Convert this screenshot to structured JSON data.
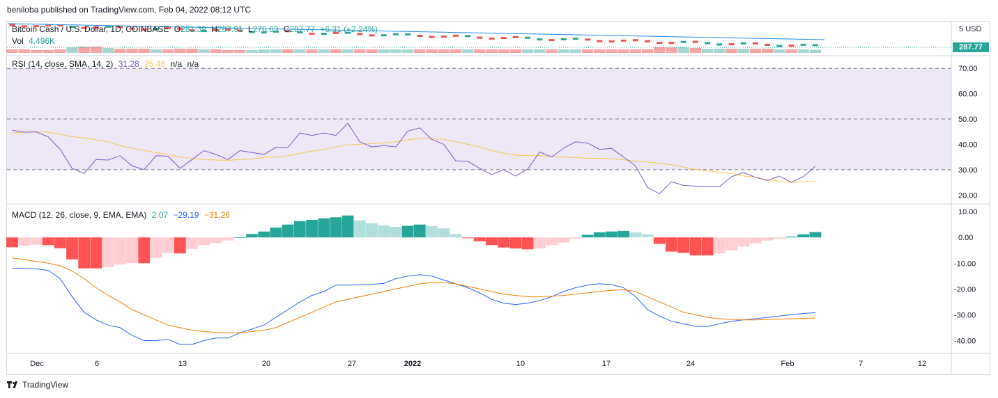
{
  "header": {
    "publisher_line": "beniloba published on TradingView.com, Feb 04, 2022 08:12 UTC"
  },
  "footer": {
    "brand": "TradingView"
  },
  "colors": {
    "up": "#26a69a",
    "down": "#ef5350",
    "rsi": "#7e57c2",
    "rsi_ma": "#f7c948",
    "macd": "#2962ff",
    "signal": "#f57c00",
    "hist_up_strong": "#26a69a",
    "hist_up_weak": "#b2dfdb",
    "hist_down_strong": "#ff5252",
    "hist_down_weak": "#ffcdd2",
    "rsi_band": "#ede7f6"
  },
  "price_pane": {
    "symbol": "Bitcoin Cash / U.S. Dollar, 1D, COINBASE",
    "o_label": "O",
    "o": "281.39",
    "h_label": "H",
    "h": "287.91",
    "l_label": "L",
    "l": "276.63",
    "c_label": "C",
    "c": "287.77",
    "change": "+6.31 (+2.24%)",
    "vol_label": "Vol",
    "vol": "4.496K",
    "last_price": "287.77",
    "axis_label": "5",
    "currency": "USD"
  },
  "rsi_pane": {
    "title": "RSI (14, close, SMA, 14, 2)",
    "value": "31.28",
    "ma_value": "25.46",
    "na1": "n/a",
    "na2": "n/a"
  },
  "macd_pane": {
    "title": "MACD (12, 26, close, 9, EMA, EMA)",
    "hist_value": "2.07",
    "macd_value": "−29.19",
    "signal_value": "−31.26"
  },
  "x_axis": {
    "ticks": [
      "Dec",
      "6",
      "13",
      "20",
      "27",
      "2022",
      "10",
      "17",
      "24",
      "Feb",
      "7",
      "12"
    ]
  },
  "chart_data": [
    {
      "type": "line",
      "title": "RSI (14, close, SMA, 14, 2)",
      "yticks": [
        "70.00",
        "60.00",
        "50.00",
        "40.00",
        "30.00",
        "20.00"
      ],
      "ylim": [
        16.5,
        75
      ],
      "band": [
        30,
        70
      ],
      "x_start": "2021-12-01",
      "series": [
        {
          "name": "RSI",
          "values": [
            45.5,
            44.8,
            44.9,
            43,
            38,
            30.5,
            28.5,
            34,
            33.8,
            35.5,
            31.5,
            30,
            35.5,
            35.3,
            30.5,
            34,
            37.5,
            36,
            34,
            37.5,
            36.8,
            36,
            38.8,
            38.8,
            44.5,
            43.5,
            44.5,
            43.5,
            48.3,
            41,
            39,
            39.5,
            39,
            45.2,
            46.5,
            42,
            40,
            33.5,
            33.3,
            30.5,
            28,
            30,
            27.5,
            30.2,
            37,
            35,
            38.5,
            41,
            40.5,
            38,
            38.4,
            35,
            31.5,
            23,
            20.5,
            25.2,
            23.8,
            23.5,
            23.2,
            23.3,
            27.2,
            28.8,
            27,
            25.7,
            27.5,
            25,
            27.3,
            31.3
          ]
        },
        {
          "name": "RSI-based MA",
          "values": [
            44.5,
            44.8,
            45,
            44.8,
            44,
            43,
            42.5,
            41.8,
            41,
            39.5,
            38.5,
            37.5,
            36.8,
            36,
            35,
            34.5,
            34,
            33.8,
            33.7,
            34,
            34.3,
            34.8,
            35,
            35.5,
            36.5,
            37.3,
            38,
            39,
            39.8,
            40,
            40.3,
            40.5,
            41,
            41.8,
            42.3,
            42.1,
            42,
            41,
            40,
            39,
            37.5,
            36.5,
            35.8,
            35.5,
            35.5,
            35.3,
            35,
            34.8,
            34.5,
            34.5,
            34.3,
            33.9,
            33.4,
            33,
            32.5,
            32,
            31,
            30,
            29.5,
            29,
            28.5,
            27.5,
            27,
            26,
            25.5,
            25,
            25.2,
            25.5
          ]
        }
      ]
    },
    {
      "type": "bar",
      "title": "MACD (12, 26, close, 9, EMA, EMA)",
      "yticks": [
        "10.00",
        "0.00",
        "-10.00",
        "-20.00",
        "-30.00",
        "-40.00"
      ],
      "ylim": [
        -45,
        13
      ],
      "x_start": "2021-12-01",
      "series": [
        {
          "name": "Histogram",
          "values": [
            -3.8,
            -3.2,
            -2.8,
            -3,
            -4.2,
            -8.5,
            -12,
            -12,
            -11.5,
            -10.5,
            -10,
            -10,
            -8,
            -6,
            -6.2,
            -4.5,
            -3,
            -2.2,
            -1.2,
            0,
            1.3,
            2.3,
            3.8,
            5,
            6.3,
            6.8,
            7.4,
            7.8,
            8.5,
            6.6,
            5.5,
            4.6,
            4.1,
            4.5,
            5,
            4.4,
            3.5,
            1.3,
            -0.3,
            -1.5,
            -3,
            -3.9,
            -4.3,
            -4.6,
            -4.3,
            -3,
            -2,
            -0.5,
            1,
            2,
            2.3,
            2.5,
            1.9,
            1.2,
            -2.5,
            -5.5,
            -6,
            -7,
            -7,
            -6.2,
            -5,
            -3.5,
            -2.3,
            -1.2,
            -0.5,
            0.3,
            1.2,
            2.07
          ]
        },
        {
          "name": "MACD",
          "values": [
            -12,
            -12,
            -12.2,
            -12.8,
            -16,
            -23,
            -29,
            -32,
            -34,
            -35,
            -38,
            -40,
            -40,
            -39.5,
            -41.5,
            -41.5,
            -40,
            -39,
            -39,
            -37,
            -35.5,
            -34,
            -31,
            -28,
            -25,
            -22.5,
            -21,
            -18.5,
            -18.5,
            -18.3,
            -18.2,
            -17.8,
            -16,
            -15,
            -14.5,
            -15,
            -16.5,
            -18,
            -19.5,
            -21.5,
            -24,
            -25.5,
            -26,
            -25.5,
            -24.5,
            -23,
            -21,
            -19.5,
            -18.5,
            -18,
            -18.3,
            -19.5,
            -23,
            -28,
            -30.5,
            -32.5,
            -33.5,
            -34.5,
            -34.5,
            -33.5,
            -32.5,
            -32,
            -31.5,
            -31,
            -30.5,
            -30,
            -29.5,
            -29.19
          ]
        },
        {
          "name": "Signal",
          "values": [
            -8,
            -8.6,
            -9.3,
            -10,
            -11,
            -13,
            -16,
            -19.5,
            -22.5,
            -25,
            -28,
            -30,
            -32,
            -34,
            -35,
            -36,
            -36.5,
            -36.8,
            -37,
            -37,
            -36.5,
            -36,
            -35,
            -33,
            -31,
            -29,
            -27,
            -25,
            -24,
            -23,
            -22,
            -21,
            -20,
            -19,
            -18,
            -17.5,
            -17.5,
            -18,
            -19,
            -20,
            -21,
            -22,
            -22.5,
            -23,
            -23,
            -22.8,
            -22.5,
            -22,
            -21.5,
            -21,
            -20.5,
            -20.3,
            -21,
            -23,
            -25,
            -27,
            -29,
            -30,
            -31,
            -31.5,
            -31.8,
            -32,
            -32,
            -31.8,
            -31.7,
            -31.5,
            -31.4,
            -31.26
          ]
        }
      ]
    },
    {
      "type": "bar",
      "title": "Bitcoin Cash / U.S. Dollar, 1D, COINBASE",
      "series": [
        {
          "name": "Vol",
          "values": [
            5,
            5,
            4,
            4,
            5,
            8,
            9,
            9,
            7,
            6,
            6,
            6,
            5,
            5,
            6,
            6,
            5,
            5,
            4,
            4,
            4,
            5,
            5,
            5,
            5,
            5,
            5,
            5,
            5,
            5,
            5,
            5,
            5,
            5,
            5,
            5,
            5,
            5,
            5,
            5,
            5,
            5,
            5,
            5,
            5,
            5,
            5,
            5,
            5,
            5,
            5,
            5,
            5,
            5,
            8,
            8,
            8,
            7,
            6,
            6,
            6,
            6,
            6,
            6,
            5,
            5,
            5,
            4.5
          ]
        },
        {
          "name": "Direction",
          "values": [
            0,
            0,
            0,
            0,
            0,
            1,
            0,
            0,
            1,
            0,
            0,
            0,
            1,
            0,
            0,
            0,
            1,
            0,
            0,
            0,
            1,
            1,
            1,
            0,
            1,
            0,
            1,
            0,
            1,
            0,
            0,
            1,
            1,
            1,
            0,
            0,
            0,
            0,
            1,
            0,
            0,
            0,
            0,
            1,
            1,
            0,
            1,
            1,
            0,
            0,
            0,
            0,
            0,
            0,
            0,
            0,
            1,
            0,
            1,
            1,
            0,
            1,
            0,
            0,
            1,
            0,
            1,
            1
          ]
        }
      ]
    }
  ]
}
